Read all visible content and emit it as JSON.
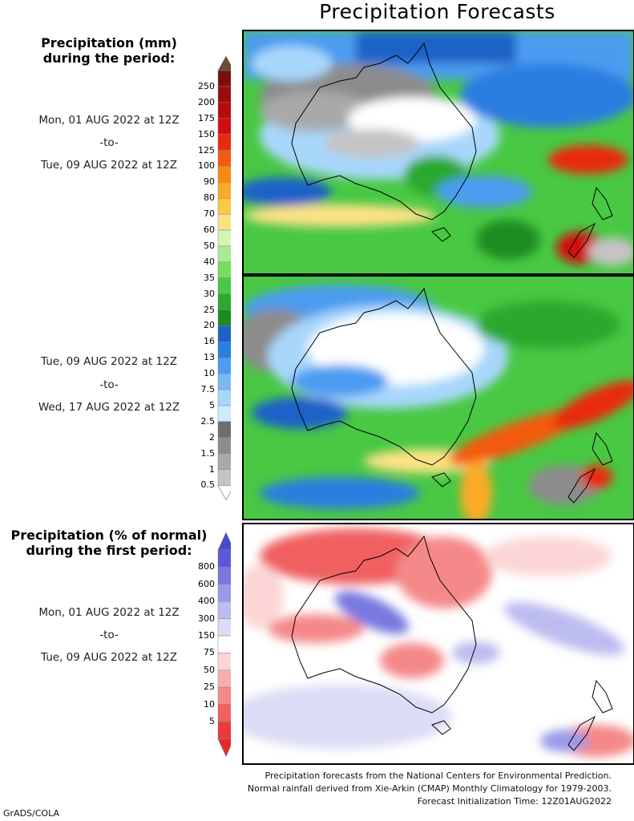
{
  "title": "Precipitation Forecasts",
  "legend1": {
    "heading_line1": "Precipitation (mm)",
    "heading_line2": "during the period:",
    "labels": [
      "250",
      "200",
      "175",
      "150",
      "125",
      "100",
      "90",
      "80",
      "70",
      "60",
      "50",
      "40",
      "35",
      "30",
      "25",
      "20",
      "16",
      "13",
      "10",
      "7.5",
      "5",
      "2.5",
      "2",
      "1.5",
      "1",
      "0.5"
    ],
    "colors": [
      "#7a0f0f",
      "#9a0b0b",
      "#b80a0a",
      "#d30d0d",
      "#ea2a10",
      "#f45a10",
      "#f88a12",
      "#fbaa25",
      "#fcc845",
      "#fde285",
      "#d7f3b3",
      "#a9eb91",
      "#78dc62",
      "#48c843",
      "#2aa92e",
      "#1a8c22",
      "#1e62c8",
      "#2a7ee0",
      "#4c9cf0",
      "#7ab8f5",
      "#a7d7fb",
      "#ccecfd",
      "#6e6e6e",
      "#8c8c8c",
      "#a9a9a9",
      "#c4c4c4"
    ],
    "top_arrow_color": "#6a4a3a",
    "bottom_arrow_color": "#ffffff"
  },
  "period1": {
    "start": "Mon, 01 AUG 2022 at 12Z",
    "sep": "-to-",
    "end": "Tue, 09 AUG 2022 at 12Z"
  },
  "period2": {
    "start": "Tue, 09 AUG 2022 at 12Z",
    "sep": "-to-",
    "end": "Wed, 17 AUG 2022 at 12Z"
  },
  "legend2": {
    "heading_line1": "Precipitation (% of normal)",
    "heading_line2": "during the first period:",
    "labels": [
      "800",
      "600",
      "400",
      "300",
      "150",
      "75",
      "50",
      "25",
      "10",
      "5"
    ],
    "colors": [
      "#5a5ad8",
      "#7878e0",
      "#9a9ae8",
      "#bcbcf0",
      "#dcdcf6",
      "#ffffff",
      "#fcd6d6",
      "#f8aeae",
      "#f58888",
      "#f06060",
      "#ea3a3a"
    ],
    "top_arrow_color": "#4a4ad0",
    "bottom_arrow_color": "#e82828"
  },
  "period3": {
    "start": "Mon, 01 AUG 2022 at 12Z",
    "sep": "-to-",
    "end": "Tue, 09 AUG 2022 at 12Z"
  },
  "footer": {
    "line1": "Precipitation forecasts from the National Centers for Environmental Prediction.",
    "line2": "Normal rainfall derived from Xie-Arkin (CMAP) Monthly Climatology for 1979-2003.",
    "line3": "Forecast Initialization Time: 12Z01AUG2022"
  },
  "credit": "GrADS/COLA"
}
